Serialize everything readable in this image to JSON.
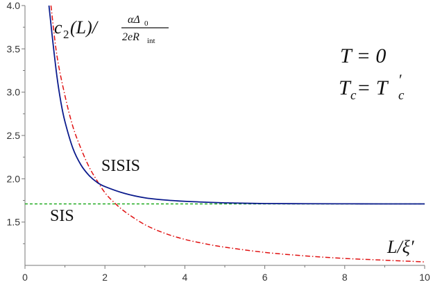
{
  "chart_data": {
    "type": "line",
    "xlim": [
      0,
      10
    ],
    "ylim": [
      1.0,
      4.0
    ],
    "x_ticks": [
      "0",
      "2",
      "4",
      "6",
      "8",
      "10"
    ],
    "y_ticks": [
      "1.5",
      "2.0",
      "2.5",
      "3.0",
      "3.5",
      "4.0"
    ],
    "grid": false,
    "ylabel": {
      "main": "c",
      "sub": "2",
      "arg": "(L)/",
      "frac_num": "αΔ",
      "frac_num_sub": "0",
      "frac_den": "2eR",
      "frac_den_sub": "int"
    },
    "xlabel": "L/ξ′",
    "annotations": {
      "t_line": "T = 0",
      "tc_line_main": "T",
      "tc_line_sub": "c",
      "tc_line_mid": " = T",
      "tc_line_sub2": "c",
      "tc_line_prime": "′"
    },
    "series": [
      {
        "name": "SISIS",
        "color": "#0a1a8c",
        "style": "solid",
        "x": [
          0.6,
          0.7,
          0.8,
          0.9,
          1.0,
          1.2,
          1.4,
          1.6,
          1.8,
          2.0,
          2.5,
          3.0,
          3.5,
          4.0,
          4.5,
          5.0,
          6.0,
          7.0,
          8.0,
          9.0,
          10.0
        ],
        "values": [
          4.0,
          3.57,
          3.18,
          2.88,
          2.66,
          2.35,
          2.16,
          2.04,
          1.96,
          1.91,
          1.83,
          1.78,
          1.755,
          1.74,
          1.73,
          1.722,
          1.714,
          1.712,
          1.711,
          1.71,
          1.71
        ]
      },
      {
        "name": "SIS",
        "color": "#e01010",
        "style": "dashdot",
        "x": [
          0.65,
          0.8,
          1.0,
          1.2,
          1.4,
          1.6,
          1.8,
          2.0,
          2.2,
          2.5,
          3.0,
          3.5,
          4.0,
          4.5,
          5.0,
          6.0,
          7.0,
          8.0,
          9.0,
          10.0
        ],
        "values": [
          4.0,
          3.42,
          2.96,
          2.6,
          2.35,
          2.14,
          1.98,
          1.84,
          1.74,
          1.62,
          1.47,
          1.37,
          1.3,
          1.25,
          1.21,
          1.15,
          1.11,
          1.08,
          1.06,
          1.04
        ]
      },
      {
        "name": "asymptote",
        "color": "#1faa1f",
        "style": "dashed",
        "x": [
          0,
          10
        ],
        "values": [
          1.71,
          1.71
        ]
      }
    ]
  }
}
